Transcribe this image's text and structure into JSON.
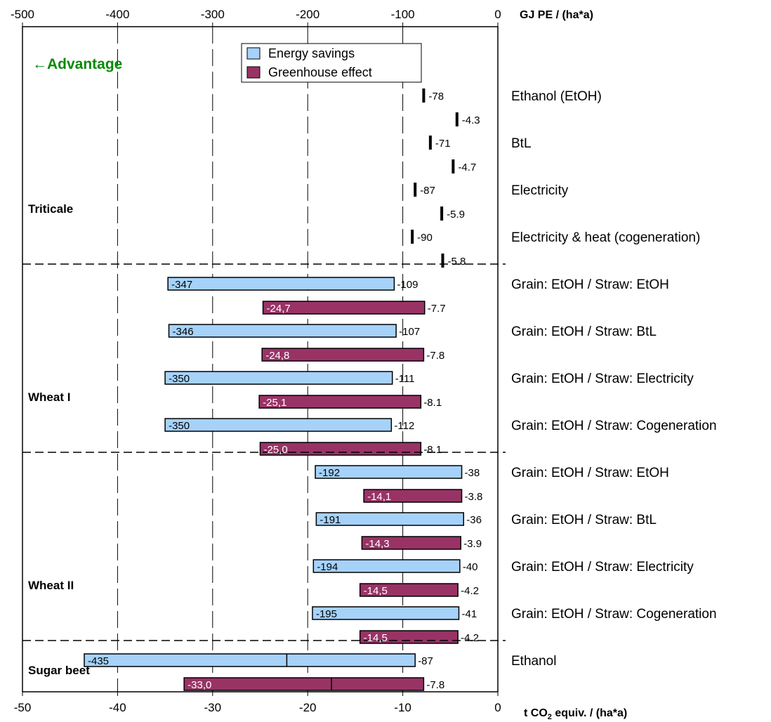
{
  "chart_data": {
    "type": "bar",
    "orientation": "horizontal",
    "top_axis": {
      "label": "GJ PE / (ha*a)",
      "range": [
        -500,
        0
      ],
      "ticks": [
        "-500",
        "-400",
        "-300",
        "-200",
        "-100",
        "0"
      ]
    },
    "bottom_axis": {
      "label_main": "t CO",
      "label_sub": "2",
      "label_rest": " equiv.  / (ha*a)",
      "range": [
        -50,
        0
      ],
      "ticks": [
        "-50",
        "-40",
        "-30",
        "-20",
        "-10",
        "0"
      ]
    },
    "grid": "dashed vertical lines at -100, -200, -300, -400 GJ",
    "annotation": "←Advantage",
    "legend": {
      "placement": "top-center",
      "items": [
        {
          "label": "Energy savings",
          "color": "#a6d2fa"
        },
        {
          "label": "Greenhouse effect",
          "color": "#993366"
        }
      ]
    },
    "groups": [
      "Triticale",
      "Wheat I",
      "Wheat II",
      "Sugar beet"
    ],
    "rows": [
      {
        "group": "Triticale",
        "category": "Ethanol (EtOH)",
        "energy": {
          "start": -78,
          "end": -78,
          "start_label": "",
          "end_label": "-78"
        },
        "ghg": {
          "start": -4.3,
          "end": -4.3,
          "start_label": "",
          "end_label": "-4.3"
        }
      },
      {
        "group": "Triticale",
        "category": "BtL",
        "energy": {
          "start": -71,
          "end": -71,
          "start_label": "",
          "end_label": "-71"
        },
        "ghg": {
          "start": -4.7,
          "end": -4.7,
          "start_label": "",
          "end_label": "-4.7"
        }
      },
      {
        "group": "Triticale",
        "category": "Electricity",
        "energy": {
          "start": -87,
          "end": -87,
          "start_label": "",
          "end_label": "-87"
        },
        "ghg": {
          "start": -5.9,
          "end": -5.9,
          "start_label": "",
          "end_label": "-5.9"
        }
      },
      {
        "group": "Triticale",
        "category": "Electricity & heat (cogeneration)",
        "energy": {
          "start": -90,
          "end": -90,
          "start_label": "",
          "end_label": "-90"
        },
        "ghg": {
          "start": -5.8,
          "end": -5.8,
          "start_label": "",
          "end_label": "-5.8"
        }
      },
      {
        "group": "Wheat I",
        "category": "Grain: EtOH / Straw: EtOH",
        "energy": {
          "start": -347,
          "end": -109,
          "start_label": "-347",
          "end_label": "-109"
        },
        "ghg": {
          "start": -24.7,
          "end": -7.7,
          "start_label": "-24,7",
          "end_label": "-7.7"
        }
      },
      {
        "group": "Wheat I",
        "category": "Grain: EtOH / Straw: BtL",
        "energy": {
          "start": -346,
          "end": -107,
          "start_label": "-346",
          "end_label": "-107"
        },
        "ghg": {
          "start": -24.8,
          "end": -7.8,
          "start_label": "-24,8",
          "end_label": "-7.8"
        }
      },
      {
        "group": "Wheat I",
        "category": "Grain: EtOH / Straw: Electricity",
        "energy": {
          "start": -350,
          "end": -111,
          "start_label": "-350",
          "end_label": "-111"
        },
        "ghg": {
          "start": -25.1,
          "end": -8.1,
          "start_label": "-25,1",
          "end_label": "-8.1"
        }
      },
      {
        "group": "Wheat I",
        "category": "Grain: EtOH / Straw: Cogeneration",
        "energy": {
          "start": -350,
          "end": -112,
          "start_label": "-350",
          "end_label": "-112"
        },
        "ghg": {
          "start": -25.0,
          "end": -8.1,
          "start_label": "-25,0",
          "end_label": "-8.1"
        }
      },
      {
        "group": "Wheat II",
        "category": "Grain: EtOH / Straw: EtOH",
        "energy": {
          "start": -192,
          "end": -38,
          "start_label": "-192",
          "end_label": "-38"
        },
        "ghg": {
          "start": -14.1,
          "end": -3.8,
          "start_label": "-14,1",
          "end_label": "-3.8"
        }
      },
      {
        "group": "Wheat II",
        "category": "Grain: EtOH / Straw: BtL",
        "energy": {
          "start": -191,
          "end": -36,
          "start_label": "-191",
          "end_label": "-36"
        },
        "ghg": {
          "start": -14.3,
          "end": -3.9,
          "start_label": "-14,3",
          "end_label": "-3.9"
        }
      },
      {
        "group": "Wheat II",
        "category": "Grain: EtOH / Straw: Electricity",
        "energy": {
          "start": -194,
          "end": -40,
          "start_label": "-194",
          "end_label": "-40"
        },
        "ghg": {
          "start": -14.5,
          "end": -4.2,
          "start_label": "-14,5",
          "end_label": "-4.2"
        }
      },
      {
        "group": "Wheat II",
        "category": "Grain: EtOH / Straw: Cogeneration",
        "energy": {
          "start": -195,
          "end": -41,
          "start_label": "-195",
          "end_label": "-41"
        },
        "ghg": {
          "start": -14.5,
          "end": -4.2,
          "start_label": "-14,5",
          "end_label": "-4.2"
        }
      },
      {
        "group": "Sugar beet",
        "category": "Ethanol",
        "energy": {
          "start": -435,
          "end": -87,
          "mid": -222,
          "start_label": "-435",
          "end_label": "-87"
        },
        "ghg": {
          "start": -33.0,
          "end": -7.8,
          "mid": -17.5,
          "start_label": "-33,0",
          "end_label": "-7.8"
        }
      }
    ]
  }
}
